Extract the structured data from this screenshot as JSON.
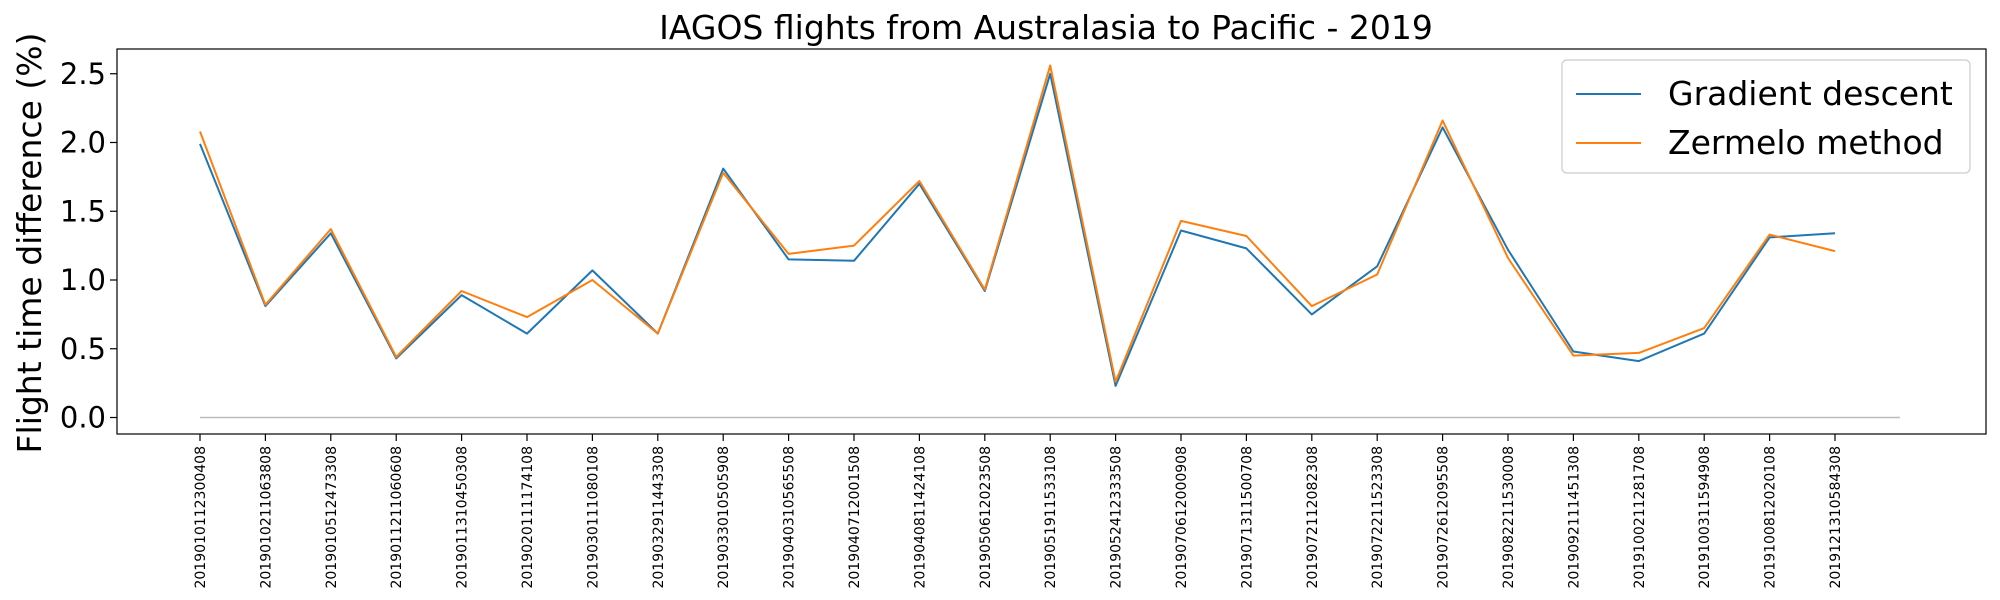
{
  "chart_data": {
    "type": "line",
    "title": "IAGOS flights from Australasia to Pacific - 2019",
    "xlabel": "",
    "ylabel": "Flight time difference (%)",
    "ylim": [
      -0.12,
      2.68
    ],
    "yticks": [
      "0.0",
      "0.5",
      "1.0",
      "1.5",
      "2.0",
      "2.5"
    ],
    "ytick_values": [
      0.0,
      0.5,
      1.0,
      1.5,
      2.0,
      2.5
    ],
    "grid": false,
    "legend": "top-right",
    "categories": [
      "2019010112300408",
      "2019010211063808",
      "2019010512473308",
      "2019011211060608",
      "2019011310450308",
      "2019020111174108",
      "2019030111080108",
      "2019032911443308",
      "2019033010505908",
      "2019040310565508",
      "2019040712001508",
      "2019040811424108",
      "2019050612023508",
      "2019051911533108",
      "2019052412333508",
      "2019070612000908",
      "2019071311500708",
      "2019072112082308",
      "2019072211523308",
      "2019072612095508",
      "2019082211530008",
      "2019092111451308",
      "2019100211281708",
      "2019100311594908",
      "2019100812020108",
      "2019121310584308"
    ],
    "series": [
      {
        "name": "Gradient descent",
        "color": "#1f77b4",
        "values": [
          1.99,
          0.81,
          1.34,
          0.43,
          0.89,
          0.61,
          1.07,
          0.61,
          1.81,
          1.15,
          1.14,
          1.7,
          0.92,
          2.5,
          0.23,
          1.36,
          1.23,
          0.75,
          1.1,
          2.11,
          1.22,
          0.48,
          0.41,
          0.61,
          1.31,
          1.34
        ]
      },
      {
        "name": "Zermelo method",
        "color": "#ff7f0e",
        "values": [
          2.08,
          0.82,
          1.37,
          0.44,
          0.92,
          0.73,
          1.0,
          0.61,
          1.78,
          1.19,
          1.25,
          1.72,
          0.93,
          2.56,
          0.26,
          1.43,
          1.32,
          0.81,
          1.04,
          2.16,
          1.16,
          0.45,
          0.47,
          0.65,
          1.33,
          1.21
        ]
      }
    ],
    "baseline": {
      "value": 0.0,
      "color": "#bbbbbb"
    }
  }
}
